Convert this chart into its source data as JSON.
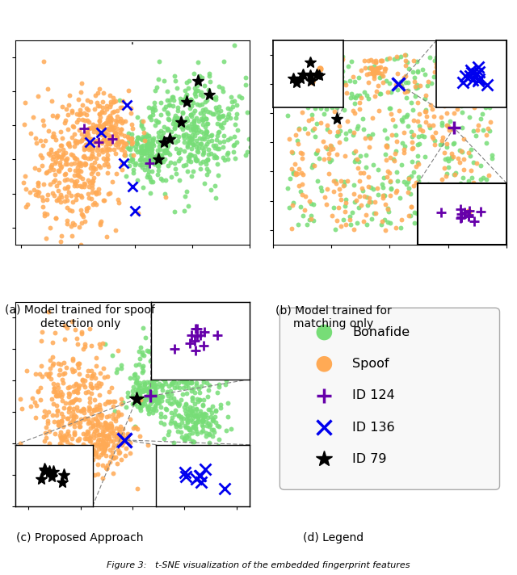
{
  "bonafide_color": "#77dd77",
  "spoof_color": "#ffaa55",
  "id124_color": "#6600aa",
  "id136_color": "#0000ee",
  "id79_color": "#000000",
  "title_a": "(a) Model trained for spoof\ndetection only",
  "title_b": "(b) Model trained for\nmatching only",
  "title_c": "(c) Proposed Approach",
  "title_d": "(d) Legend",
  "fig_caption": "Figure 3:   t-SNE visualization of the embedded fingerprint features"
}
